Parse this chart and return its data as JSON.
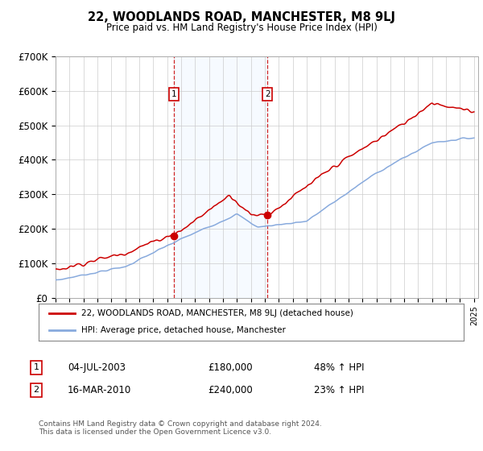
{
  "title": "22, WOODLANDS ROAD, MANCHESTER, M8 9LJ",
  "subtitle": "Price paid vs. HM Land Registry's House Price Index (HPI)",
  "x_start_year": 1995,
  "x_end_year": 2025,
  "y_min": 0,
  "y_max": 700000,
  "y_ticks": [
    0,
    100000,
    200000,
    300000,
    400000,
    500000,
    600000,
    700000
  ],
  "y_tick_labels": [
    "£0",
    "£100K",
    "£200K",
    "£300K",
    "£400K",
    "£500K",
    "£600K",
    "£700K"
  ],
  "sale1_year": 2003.5,
  "sale1_price": 180000,
  "sale1_label": "1",
  "sale1_date": "04-JUL-2003",
  "sale1_hpi": "48% ↑ HPI",
  "sale2_year": 2010.2,
  "sale2_price": 240000,
  "sale2_label": "2",
  "sale2_date": "16-MAR-2010",
  "sale2_hpi": "23% ↑ HPI",
  "property_color": "#cc0000",
  "hpi_color": "#88aadd",
  "shade_color": "#ddeeff",
  "legend_property": "22, WOODLANDS ROAD, MANCHESTER, M8 9LJ (detached house)",
  "legend_hpi": "HPI: Average price, detached house, Manchester",
  "footer": "Contains HM Land Registry data © Crown copyright and database right 2024.\nThis data is licensed under the Open Government Licence v3.0.",
  "background_color": "#ffffff",
  "grid_color": "#cccccc"
}
